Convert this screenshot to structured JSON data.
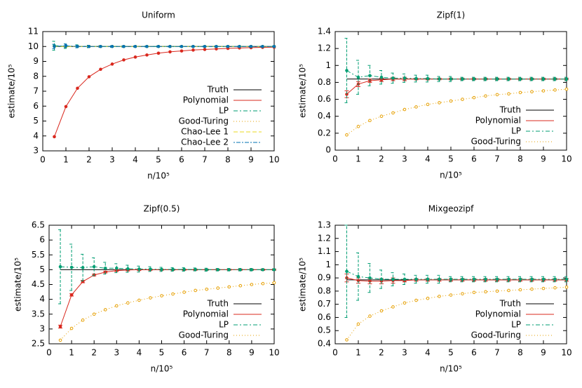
{
  "chart_data": [
    {
      "type": "line",
      "title": "Uniform",
      "x_label": "n/10⁵",
      "y_label": "estimate/10⁵",
      "x": [
        0.5,
        1,
        1.5,
        2,
        2.5,
        3,
        3.5,
        4,
        4.5,
        5,
        5.5,
        6,
        6.5,
        7,
        7.5,
        8,
        8.5,
        9,
        9.5,
        10
      ],
      "xlim": [
        0,
        10
      ],
      "xticks": [
        0,
        1,
        2,
        3,
        4,
        5,
        6,
        7,
        8,
        9,
        10
      ],
      "ylim": [
        3,
        11
      ],
      "yticks": [
        3,
        4,
        5,
        6,
        7,
        8,
        9,
        10,
        11
      ],
      "legend": "lower right",
      "series": [
        {
          "name": "Truth",
          "color": "#000000",
          "values": [
            10,
            10,
            10,
            10,
            10,
            10,
            10,
            10,
            10,
            10,
            10,
            10,
            10,
            10,
            10,
            10,
            10,
            10,
            10,
            10
          ]
        },
        {
          "name": "Polynomial",
          "color": "#d9281e",
          "values": [
            3.95,
            5.97,
            7.2,
            7.97,
            8.47,
            8.82,
            9.1,
            9.29,
            9.43,
            9.55,
            9.64,
            9.7,
            9.76,
            9.8,
            9.84,
            9.87,
            9.9,
            9.92,
            9.94,
            9.95
          ]
        },
        {
          "name": "LP",
          "color": "#009e73",
          "values": [
            10.05,
            10.02,
            10.01,
            10.0,
            10.0,
            10.0,
            10.0,
            10.0,
            10.0,
            10.0,
            10.0,
            10.0,
            10.0,
            10.0,
            10.0,
            10.0,
            10.0,
            10.0,
            10.0,
            10.0
          ],
          "errors": [
            0.3,
            0.15,
            0.1,
            0.08,
            0.06,
            0.05,
            0.05,
            0.04,
            0.04,
            0.04,
            0.03,
            0.03,
            0.03,
            0.03,
            0.03,
            0.03,
            0.03,
            0.03,
            0.03,
            0.03
          ]
        },
        {
          "name": "Good-Turing",
          "color": "#e69f00",
          "values": [
            10,
            10,
            10,
            10,
            10,
            10,
            10,
            10,
            10,
            10,
            10,
            10,
            10,
            10,
            10,
            10,
            10,
            10,
            10,
            10
          ]
        },
        {
          "name": "Chao-Lee 1",
          "color": "#e8d820",
          "values": [
            10,
            10,
            10,
            10,
            10,
            10,
            10,
            10,
            10,
            10,
            10,
            10,
            10,
            10,
            10,
            10,
            10,
            10,
            10,
            10
          ]
        },
        {
          "name": "Chao-Lee 2",
          "color": "#0072b2",
          "values": [
            10,
            10.05,
            10,
            10,
            10,
            10,
            10,
            10,
            10,
            10,
            10,
            10,
            10,
            10,
            10,
            10,
            10,
            10,
            10,
            10
          ],
          "errors": [
            0.15,
            0.12,
            0.08,
            0.06,
            0.05,
            0.04,
            0.04,
            0.03,
            0.03,
            0.03,
            0.03,
            0.03,
            0.03,
            0.03,
            0.03,
            0.03,
            0.03,
            0.03,
            0.03,
            0.03
          ]
        }
      ]
    },
    {
      "type": "line",
      "title": "Zipf(1)",
      "x_label": "n/10⁵",
      "y_label": "estimate/10⁵",
      "x": [
        0.5,
        1,
        1.5,
        2,
        2.5,
        3,
        3.5,
        4,
        4.5,
        5,
        5.5,
        6,
        6.5,
        7,
        7.5,
        8,
        8.5,
        9,
        9.5,
        10
      ],
      "xlim": [
        0,
        10
      ],
      "xticks": [
        0,
        1,
        2,
        3,
        4,
        5,
        6,
        7,
        8,
        9,
        10
      ],
      "ylim": [
        0,
        1.4
      ],
      "yticks": [
        0,
        0.2,
        0.4,
        0.6,
        0.8,
        1,
        1.2,
        1.4
      ],
      "legend": "lower right",
      "series": [
        {
          "name": "Truth",
          "color": "#000000",
          "values": [
            0.84,
            0.84,
            0.84,
            0.84,
            0.84,
            0.84,
            0.84,
            0.84,
            0.84,
            0.84,
            0.84,
            0.84,
            0.84,
            0.84,
            0.84,
            0.84,
            0.84,
            0.84,
            0.84,
            0.84
          ]
        },
        {
          "name": "Polynomial",
          "color": "#d9281e",
          "values": [
            0.66,
            0.78,
            0.82,
            0.83,
            0.84,
            0.84,
            0.84,
            0.84,
            0.84,
            0.84,
            0.84,
            0.84,
            0.84,
            0.84,
            0.84,
            0.84,
            0.84,
            0.84,
            0.84,
            0.84
          ],
          "errors": [
            0.04,
            0.03,
            0.02,
            0.02,
            0.02,
            0.02,
            0.01,
            0.01,
            0.01,
            0.01,
            0.01,
            0.01,
            0.01,
            0.01,
            0.01,
            0.01,
            0.01,
            0.01,
            0.01,
            0.01
          ]
        },
        {
          "name": "LP",
          "color": "#009e73",
          "values": [
            0.94,
            0.86,
            0.88,
            0.86,
            0.85,
            0.85,
            0.845,
            0.845,
            0.84,
            0.84,
            0.84,
            0.84,
            0.84,
            0.84,
            0.84,
            0.84,
            0.84,
            0.84,
            0.84,
            0.84
          ],
          "errors": [
            0.38,
            0.2,
            0.12,
            0.08,
            0.06,
            0.05,
            0.04,
            0.04,
            0.03,
            0.03,
            0.02,
            0.02,
            0.02,
            0.02,
            0.02,
            0.02,
            0.02,
            0.02,
            0.02,
            0.02
          ]
        },
        {
          "name": "Good-Turing",
          "color": "#e69f00",
          "values": [
            0.18,
            0.28,
            0.35,
            0.4,
            0.44,
            0.48,
            0.51,
            0.54,
            0.56,
            0.58,
            0.6,
            0.62,
            0.64,
            0.655,
            0.665,
            0.68,
            0.69,
            0.7,
            0.71,
            0.72
          ]
        }
      ]
    },
    {
      "type": "line",
      "title": "Zipf(0.5)",
      "x_label": "n/10⁵",
      "y_label": "estimate/10⁵",
      "x": [
        0.5,
        1,
        1.5,
        2,
        2.5,
        3,
        3.5,
        4,
        4.5,
        5,
        5.5,
        6,
        6.5,
        7,
        7.5,
        8,
        8.5,
        9,
        9.5,
        10
      ],
      "xlim": [
        0,
        10
      ],
      "xticks": [
        0,
        1,
        2,
        3,
        4,
        5,
        6,
        7,
        8,
        9,
        10
      ],
      "ylim": [
        2.5,
        6.5
      ],
      "yticks": [
        2.5,
        3,
        3.5,
        4,
        4.5,
        5,
        5.5,
        6,
        6.5
      ],
      "legend": "lower right",
      "series": [
        {
          "name": "Truth",
          "color": "#000000",
          "values": [
            5,
            5,
            5,
            5,
            5,
            5,
            5,
            5,
            5,
            5,
            5,
            5,
            5,
            5,
            5,
            5,
            5,
            5,
            5,
            5
          ]
        },
        {
          "name": "Polynomial",
          "color": "#d9281e",
          "values": [
            3.08,
            4.15,
            4.6,
            4.82,
            4.92,
            4.97,
            4.99,
            5,
            5,
            5,
            5,
            5,
            5,
            5,
            5,
            5,
            5,
            5,
            5,
            5
          ],
          "errors": [
            0.05,
            0.04,
            0.04,
            0.03,
            0.03,
            0.03,
            0.03,
            0.03,
            0.02,
            0.02,
            0.02,
            0.02,
            0.02,
            0.02,
            0.02,
            0.02,
            0.02,
            0.02,
            0.02,
            0.02
          ]
        },
        {
          "name": "LP",
          "color": "#009e73",
          "values": [
            5.1,
            5.08,
            5.07,
            5.1,
            5.05,
            5.05,
            5.03,
            5.02,
            5.02,
            5.01,
            5.01,
            5.01,
            5.01,
            5,
            5,
            5,
            5,
            5,
            5,
            5
          ],
          "errors": [
            1.25,
            0.78,
            0.45,
            0.3,
            0.2,
            0.15,
            0.12,
            0.1,
            0.08,
            0.07,
            0.06,
            0.06,
            0.05,
            0.05,
            0.04,
            0.04,
            0.04,
            0.04,
            0.03,
            0.03
          ]
        },
        {
          "name": "Good-Turing",
          "color": "#e69f00",
          "values": [
            2.62,
            3.02,
            3.3,
            3.5,
            3.65,
            3.78,
            3.88,
            3.97,
            4.05,
            4.12,
            4.18,
            4.24,
            4.3,
            4.34,
            4.38,
            4.42,
            4.46,
            4.5,
            4.53,
            4.56
          ]
        }
      ]
    },
    {
      "type": "line",
      "title": "Mixgeozipf",
      "x_label": "n/10⁵",
      "y_label": "estimate/10⁵",
      "x": [
        0.5,
        1,
        1.5,
        2,
        2.5,
        3,
        3.5,
        4,
        4.5,
        5,
        5.5,
        6,
        6.5,
        7,
        7.5,
        8,
        8.5,
        9,
        9.5,
        10
      ],
      "xlim": [
        0,
        10
      ],
      "xticks": [
        0,
        1,
        2,
        3,
        4,
        5,
        6,
        7,
        8,
        9,
        10
      ],
      "ylim": [
        0.4,
        1.3
      ],
      "yticks": [
        0.4,
        0.5,
        0.6,
        0.7,
        0.8,
        0.9,
        1,
        1.1,
        1.2,
        1.3
      ],
      "legend": "lower right",
      "series": [
        {
          "name": "Truth",
          "color": "#000000",
          "values": [
            0.885,
            0.885,
            0.885,
            0.885,
            0.885,
            0.885,
            0.885,
            0.885,
            0.885,
            0.885,
            0.885,
            0.885,
            0.885,
            0.885,
            0.885,
            0.885,
            0.885,
            0.885,
            0.885,
            0.885
          ]
        },
        {
          "name": "Polynomial",
          "color": "#d9281e",
          "values": [
            0.9,
            0.88,
            0.875,
            0.875,
            0.88,
            0.88,
            0.885,
            0.885,
            0.885,
            0.885,
            0.885,
            0.885,
            0.885,
            0.885,
            0.885,
            0.885,
            0.885,
            0.885,
            0.885,
            0.885
          ],
          "errors": [
            0.03,
            0.02,
            0.02,
            0.02,
            0.02,
            0.01,
            0.01,
            0.01,
            0.01,
            0.01,
            0.01,
            0.01,
            0.01,
            0.01,
            0.01,
            0.01,
            0.01,
            0.01,
            0.01,
            0.01
          ]
        },
        {
          "name": "LP",
          "color": "#009e73",
          "values": [
            0.95,
            0.91,
            0.9,
            0.89,
            0.89,
            0.89,
            0.89,
            0.89,
            0.89,
            0.89,
            0.89,
            0.89,
            0.89,
            0.89,
            0.89,
            0.89,
            0.89,
            0.89,
            0.89,
            0.89
          ],
          "errors": [
            0.35,
            0.18,
            0.11,
            0.07,
            0.05,
            0.04,
            0.03,
            0.03,
            0.03,
            0.02,
            0.02,
            0.02,
            0.02,
            0.02,
            0.02,
            0.02,
            0.02,
            0.02,
            0.02,
            0.02
          ]
        },
        {
          "name": "Good-Turing",
          "color": "#e69f00",
          "values": [
            0.43,
            0.55,
            0.61,
            0.65,
            0.68,
            0.71,
            0.73,
            0.745,
            0.76,
            0.77,
            0.78,
            0.79,
            0.795,
            0.8,
            0.805,
            0.81,
            0.815,
            0.82,
            0.825,
            0.83
          ]
        }
      ]
    }
  ]
}
